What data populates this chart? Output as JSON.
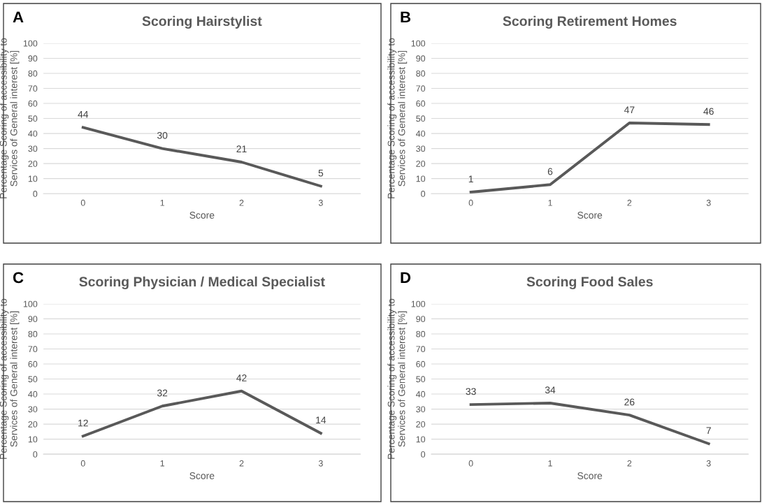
{
  "chart_data": [
    {
      "type": "line",
      "title": "Scoring Hairstylist",
      "annotations": [
        "A"
      ],
      "xlabel": "Score",
      "ylabel": "Percentage Scoring of accessibility to\nServices of General interest [%]",
      "categories": [
        "0",
        "1",
        "2",
        "3"
      ],
      "series": [
        {
          "color": "#595959",
          "values": [
            44,
            30,
            21,
            5
          ]
        }
      ],
      "ylim": [
        0,
        100
      ],
      "yticks": [
        0,
        10,
        20,
        30,
        40,
        50,
        60,
        70,
        80,
        90,
        100
      ],
      "grid": "y",
      "data_labels": true,
      "legend": false,
      "marker": "none"
    },
    {
      "type": "line",
      "title": "Scoring Retirement Homes",
      "annotations": [
        "B"
      ],
      "xlabel": "Score",
      "ylabel": "Percentage Scoring of accessibility to\nServices of General interest [%]",
      "categories": [
        "0",
        "1",
        "2",
        "3"
      ],
      "series": [
        {
          "color": "#595959",
          "values": [
            1,
            6,
            47,
            46
          ]
        }
      ],
      "ylim": [
        0,
        100
      ],
      "yticks": [
        0,
        10,
        20,
        30,
        40,
        50,
        60,
        70,
        80,
        90,
        100
      ],
      "grid": "y",
      "data_labels": true,
      "legend": false,
      "marker": "none"
    },
    {
      "type": "line",
      "title": "Scoring Physician / Medical Specialist",
      "annotations": [
        "C"
      ],
      "xlabel": "Score",
      "ylabel": "Percentage Scoring of accessibility to\nServices of General interest [%]",
      "categories": [
        "0",
        "1",
        "2",
        "3"
      ],
      "series": [
        {
          "color": "#595959",
          "values": [
            12,
            32,
            42,
            14
          ]
        }
      ],
      "ylim": [
        0,
        100
      ],
      "yticks": [
        0,
        10,
        20,
        30,
        40,
        50,
        60,
        70,
        80,
        90,
        100
      ],
      "grid": "y",
      "data_labels": true,
      "legend": false,
      "marker": "none"
    },
    {
      "type": "line",
      "title": "Scoring Food Sales",
      "annotations": [
        "D"
      ],
      "xlabel": "Score",
      "ylabel": "Percentage Scoring of accessibility to\nServices of General interest [%]",
      "categories": [
        "0",
        "1",
        "2",
        "3"
      ],
      "series": [
        {
          "color": "#595959",
          "values": [
            33,
            34,
            26,
            7
          ]
        }
      ],
      "ylim": [
        0,
        100
      ],
      "yticks": [
        0,
        10,
        20,
        30,
        40,
        50,
        60,
        70,
        80,
        90,
        100
      ],
      "grid": "y",
      "data_labels": true,
      "legend": false,
      "marker": "none"
    }
  ]
}
